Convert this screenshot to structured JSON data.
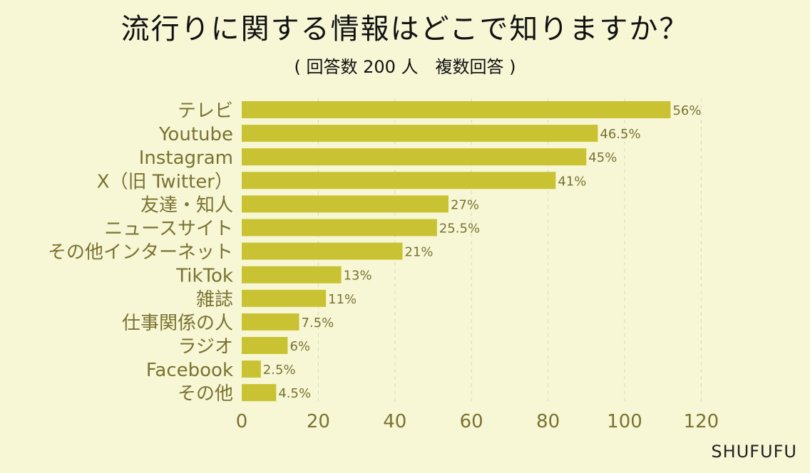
{
  "chart_data": {
    "type": "bar",
    "orientation": "horizontal",
    "title": "流行りに関する情報はどこで知りますか？",
    "subtitle": "( 回答数 200 人　複数回答 )",
    "categories": [
      "テレビ",
      "Youtube",
      "Instagram",
      "X（旧 Twitter）",
      "友達・知人",
      "ニュースサイト",
      "その他インターネット",
      "TikTok",
      "雑誌",
      "仕事関係の人",
      "ラジオ",
      "Facebook",
      "その他"
    ],
    "values": [
      112,
      93,
      90,
      82,
      54,
      51,
      42,
      26,
      22,
      15,
      12,
      5,
      9
    ],
    "data_labels": [
      "56%",
      "46.5%",
      "45%",
      "41%",
      "27%",
      "25.5%",
      "21%",
      "13%",
      "11%",
      "7.5%",
      "6%",
      "2.5%",
      "4.5%"
    ],
    "xlim": [
      0,
      120
    ],
    "xticks": [
      "0",
      "20",
      "40",
      "60",
      "80",
      "100",
      "120"
    ],
    "xlabel": "",
    "ylabel": "",
    "grid": "vertical dashed",
    "colors": {
      "bar": "#c9c333",
      "label": "#7a7230",
      "background": "#f7f7d6",
      "grid": "#d8d8c0"
    }
  },
  "brand": "SHUFUFU"
}
